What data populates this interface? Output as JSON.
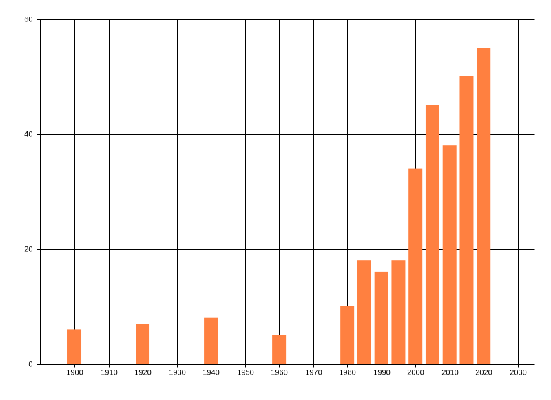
{
  "chart_data": {
    "type": "bar",
    "x": [
      1900,
      1920,
      1940,
      1960,
      1980,
      1985,
      1990,
      1995,
      2000,
      2005,
      2010,
      2015,
      2020
    ],
    "values": [
      6,
      7,
      8,
      5,
      10,
      18,
      16,
      18,
      34,
      45,
      38,
      50,
      55
    ],
    "color": "#ff8040",
    "xlim": [
      1890,
      2035
    ],
    "xticks": [
      1900,
      1910,
      1920,
      1930,
      1940,
      1950,
      1960,
      1970,
      1980,
      1990,
      2000,
      2010,
      2020,
      2030
    ],
    "ylim": [
      0,
      60
    ],
    "yticks": [
      0,
      20,
      40,
      60
    ],
    "grid": true
  }
}
